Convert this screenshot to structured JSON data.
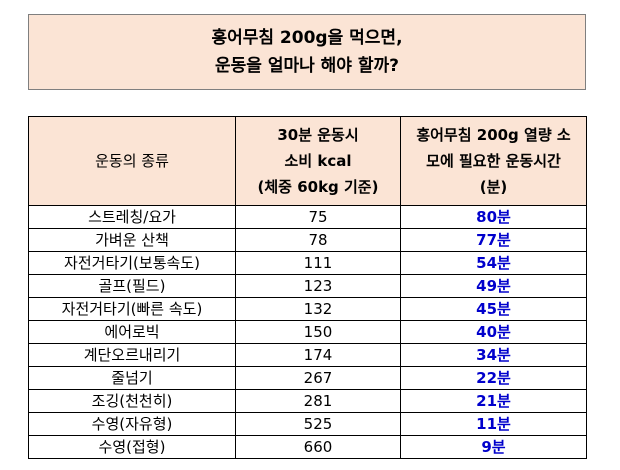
{
  "title": {
    "line1": "홍어무침 200g을 먹으면,",
    "line2": "운동을 얼마나 해야 할까?"
  },
  "table": {
    "headers": [
      {
        "lines": [
          "운동의 종류"
        ]
      },
      {
        "lines": [
          "30분 운동시",
          "소비 kcal",
          "(체중 60kg 기준)"
        ]
      },
      {
        "lines": [
          "홍어무침 200g 열량 소",
          "모에 필요한 운동시간",
          "(분)"
        ]
      }
    ],
    "rows": [
      {
        "exercise": "스트레칭/요가",
        "kcal": "75",
        "time": "80분"
      },
      {
        "exercise": "가벼운 산책",
        "kcal": "78",
        "time": "77분"
      },
      {
        "exercise": "자전거타기(보통속도)",
        "kcal": "111",
        "time": "54분"
      },
      {
        "exercise": "골프(필드)",
        "kcal": "123",
        "time": "49분"
      },
      {
        "exercise": "자전거타기(빠른 속도)",
        "kcal": "132",
        "time": "45분"
      },
      {
        "exercise": "에어로빅",
        "kcal": "150",
        "time": "40분"
      },
      {
        "exercise": "계단오르내리기",
        "kcal": "174",
        "time": "34분"
      },
      {
        "exercise": "줄넘기",
        "kcal": "267",
        "time": "22분"
      },
      {
        "exercise": "조깅(천천히)",
        "kcal": "281",
        "time": "21분"
      },
      {
        "exercise": "수영(자유형)",
        "kcal": "525",
        "time": "11분"
      },
      {
        "exercise": "수영(접형)",
        "kcal": "660",
        "time": "9분"
      }
    ]
  },
  "colors": {
    "header_bg": "#fbe4d5",
    "time_text": "#0000cc"
  }
}
